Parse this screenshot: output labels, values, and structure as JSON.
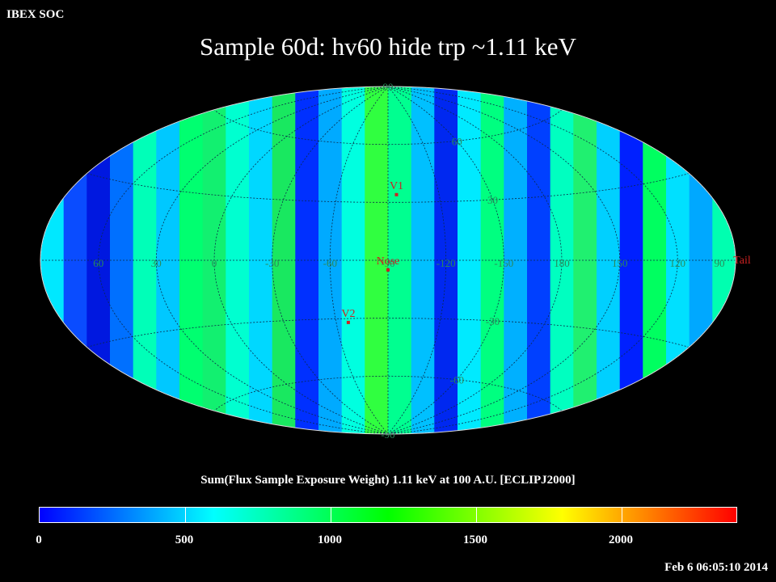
{
  "header": {
    "corner_label": "IBEX SOC",
    "title": "Sample 60d: hv60 hide trp ~1.11 keV"
  },
  "map": {
    "projection": "aitoff",
    "lon_labels": [
      {
        "text": "60",
        "lon": 60
      },
      {
        "text": "30",
        "lon": 30
      },
      {
        "text": "0",
        "lon": 0
      },
      {
        "text": "-30",
        "lon": -30
      },
      {
        "text": "-60",
        "lon": -60
      },
      {
        "text": "-90",
        "lon": -90
      },
      {
        "text": "-120",
        "lon": -120
      },
      {
        "text": "-150",
        "lon": -150
      },
      {
        "text": "180",
        "lon": 180
      },
      {
        "text": "150",
        "lon": 150
      },
      {
        "text": "120",
        "lon": 120
      },
      {
        "text": "90",
        "lon": 90
      }
    ],
    "lat_labels": [
      {
        "text": "90",
        "lat": 90
      },
      {
        "text": "60",
        "lat": 60
      },
      {
        "text": "30",
        "lat": 30
      },
      {
        "text": "-30",
        "lat": -30
      },
      {
        "text": "-60",
        "lat": -60
      },
      {
        "text": "-90",
        "lat": -90
      }
    ],
    "markers": [
      {
        "name": "V1",
        "lon": -95,
        "lat": 34
      },
      {
        "name": "Nose",
        "lon": -90,
        "lat": -5
      },
      {
        "name": "V2",
        "lon": -67,
        "lat": -32
      },
      {
        "name": "Tail",
        "lon": 90,
        "lat": 0
      }
    ],
    "colors": {
      "marker": "#cc2222",
      "grid_label": "#2a8a5a"
    }
  },
  "colorbar": {
    "caption": "Sum(Flux Sample Exposure Weight)  1.11 keV at 100 A.U. [ECLIPJ2000]",
    "min": 0,
    "max": 2400,
    "ticks": [
      {
        "text": "0",
        "value": 0
      },
      {
        "text": "500",
        "value": 500
      },
      {
        "text": "1000",
        "value": 1000
      },
      {
        "text": "1500",
        "value": 1500
      },
      {
        "text": "2000",
        "value": 2000
      }
    ],
    "gradient_stops": [
      "#0000ff",
      "#00ffff",
      "#00ff00",
      "#ffff00",
      "#ff0000"
    ]
  },
  "footer": {
    "timestamp": "Feb  6 06:05:10 2014"
  }
}
